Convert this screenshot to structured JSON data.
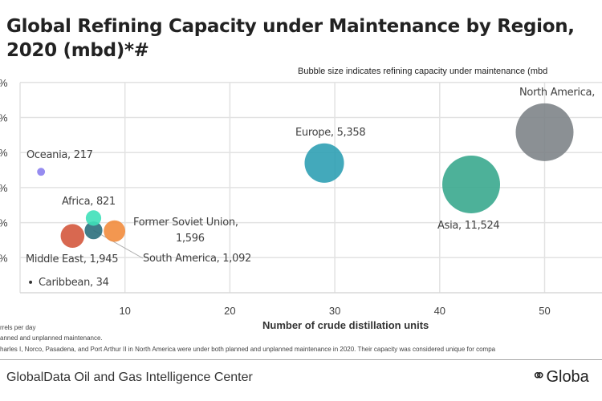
{
  "title": "Global Refining Capacity under Maintenance by Region,",
  "title_line2": "2020 (mbd)*#",
  "subtitle": "Bubble size indicates refining capacity under maintenance (mbd",
  "chart_data": {
    "type": "scatter",
    "xlabel": "Number of crude distillation  units",
    "x_ticks": [
      "10",
      "20",
      "30",
      "40",
      "50"
    ],
    "y_tick_labels": [
      "%",
      "%",
      "%",
      "%",
      "%",
      "%"
    ],
    "xlim": [
      0,
      56
    ],
    "grid": true,
    "points": [
      {
        "label": "North America,",
        "x": 50,
        "y": 4.58,
        "capacity": null,
        "color": "#7e8488"
      },
      {
        "label": "Asia,  11,524",
        "x": 43,
        "y": 3.09,
        "capacity": 11524,
        "color": "#3aa88e"
      },
      {
        "label": "Europe,  5,358",
        "x": 29,
        "y": 3.7,
        "capacity": 5358,
        "color": "#2fa0b4"
      },
      {
        "label": "Middle East,  1,945",
        "x": 5,
        "y": 1.62,
        "capacity": 1945,
        "color": "#d4583d"
      },
      {
        "label": "Former Soviet Union,",
        "label2": "1,596",
        "x": 9,
        "y": 1.76,
        "capacity": 1596,
        "color": "#f28c3d"
      },
      {
        "label": "South America,  1,092",
        "x": 7,
        "y": 1.78,
        "capacity": 1092,
        "color": "#2b6f7c"
      },
      {
        "label": "Africa,  821",
        "x": 7,
        "y": 2.13,
        "capacity": 821,
        "color": "#3fe0b9"
      },
      {
        "label": "Oceania,  217",
        "x": 2,
        "y": 3.45,
        "capacity": 217,
        "color": "#8b80ee"
      },
      {
        "label": "Caribbean,  34",
        "x": 1,
        "y": 0.3,
        "capacity": 34,
        "color": "#333333"
      }
    ]
  },
  "footnotes": [
    "rrels per day",
    "anned and unplanned maintenance.",
    "harles I, Norco, Pasadena, and Port Arthur  II in North America were  under both planned and unplanned maintenance in 2020. Their capacity was considered unique for compa"
  ],
  "source": "GlobalData Oil and Gas Intelligence Center",
  "logo": "Globa"
}
